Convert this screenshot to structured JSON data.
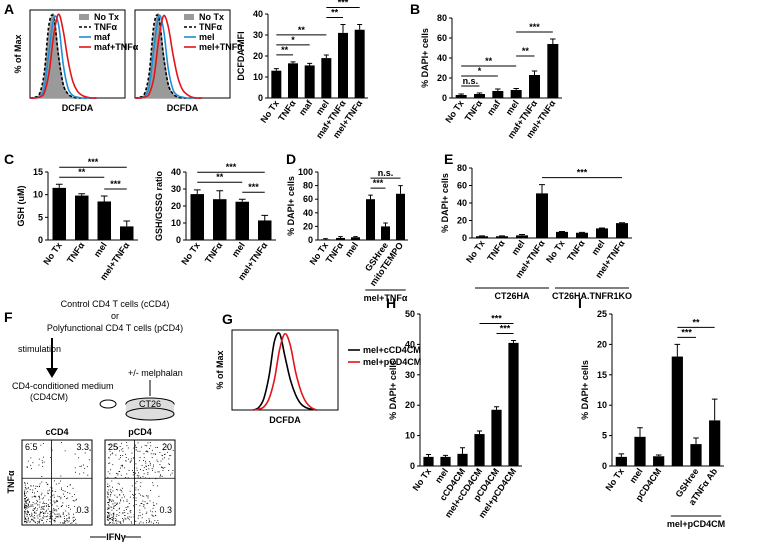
{
  "chart_data": [
    {
      "type": "line",
      "panel": "A",
      "ylabel": "% of Max",
      "xlabel": "DCFDA",
      "x": [
        0,
        5,
        10,
        15,
        20,
        25,
        30,
        35,
        40,
        45,
        50,
        55,
        60,
        65,
        70
      ],
      "xlim": [
        0,
        100
      ],
      "ylim": [
        0,
        105
      ],
      "legend": "upper right",
      "series": [
        {
          "name": "No Tx",
          "color": "#9a9a9a",
          "fill": true,
          "values": [
            0,
            1,
            4,
            25,
            80,
            100,
            55,
            18,
            5,
            1,
            0,
            0,
            0,
            0,
            0
          ]
        },
        {
          "name": "TNFα",
          "color": "#000000",
          "dash": true,
          "values": [
            0,
            1,
            5,
            30,
            88,
            96,
            50,
            16,
            5,
            1,
            0,
            0,
            0,
            0,
            0
          ]
        },
        {
          "name": "maf",
          "color": "#1f8fd6",
          "values": [
            0,
            0,
            2,
            12,
            55,
            95,
            88,
            40,
            12,
            3,
            1,
            0,
            0,
            0,
            0
          ]
        },
        {
          "name": "maf+TNFα",
          "color": "#e3151a",
          "values": [
            0,
            0,
            1,
            6,
            30,
            75,
            100,
            80,
            45,
            20,
            8,
            3,
            1,
            0,
            0
          ]
        }
      ]
    },
    {
      "type": "line",
      "xlabel": "DCFDA",
      "x": [
        0,
        5,
        10,
        15,
        20,
        25,
        30,
        35,
        40,
        45,
        50,
        55,
        60,
        65,
        70
      ],
      "xlim": [
        0,
        100
      ],
      "ylim": [
        0,
        105
      ],
      "legend": "upper right",
      "series": [
        {
          "name": "No Tx",
          "color": "#9a9a9a",
          "fill": true,
          "values": [
            0,
            1,
            4,
            25,
            80,
            100,
            55,
            18,
            5,
            1,
            0,
            0,
            0,
            0,
            0
          ]
        },
        {
          "name": "TNFα",
          "color": "#000000",
          "dash": true,
          "values": [
            0,
            1,
            5,
            30,
            88,
            96,
            50,
            16,
            5,
            1,
            0,
            0,
            0,
            0,
            0
          ]
        },
        {
          "name": "mel",
          "color": "#1f8fd6",
          "values": [
            0,
            0,
            2,
            14,
            60,
            98,
            82,
            35,
            10,
            3,
            1,
            0,
            0,
            0,
            0
          ]
        },
        {
          "name": "mel+TNFα",
          "color": "#e3151a",
          "values": [
            0,
            0,
            1,
            5,
            25,
            70,
            98,
            85,
            52,
            25,
            10,
            4,
            1,
            0,
            0
          ]
        }
      ]
    },
    {
      "type": "bar",
      "ylabel": "DCFDA MFI",
      "color": "#000000",
      "categories": [
        "No Tx",
        "TNFα",
        "maf",
        "mel",
        "maf+TNFα",
        "mel+TNFα"
      ],
      "values": [
        13,
        16.5,
        15.5,
        19,
        31,
        32.5
      ],
      "errors": [
        1,
        0.7,
        1,
        1.5,
        4,
        2.5
      ],
      "ylim": [
        0,
        40
      ],
      "yticks": [
        0,
        10,
        20,
        30,
        40
      ],
      "brackets": [
        {
          "label": "**",
          "from": 0,
          "to": 1
        },
        {
          "label": "*",
          "from": 0,
          "to": 2
        },
        {
          "label": "**",
          "from": 0,
          "to": 3
        },
        {
          "label": "**",
          "from": 3,
          "to": 4
        },
        {
          "label": "***",
          "from": 3,
          "to": 5
        }
      ]
    },
    {
      "type": "bar",
      "panel": "B",
      "ylabel": "% DAPI+ cells",
      "color": "#000000",
      "categories": [
        "No Tx",
        "TNFα",
        "maf",
        "mel",
        "maf+TNFα",
        "mel+TNFα"
      ],
      "values": [
        3,
        4,
        7,
        8,
        23,
        54
      ],
      "errors": [
        1,
        1,
        2,
        1.5,
        4,
        5
      ],
      "ylim": [
        0,
        80
      ],
      "yticks": [
        0,
        20,
        40,
        60,
        80
      ],
      "brackets": [
        {
          "label": "n.s.",
          "from": 0,
          "to": 1
        },
        {
          "label": "*",
          "from": 0,
          "to": 2
        },
        {
          "label": "**",
          "from": 0,
          "to": 3
        },
        {
          "label": "**",
          "from": 3,
          "to": 4
        },
        {
          "label": "***",
          "from": 3,
          "to": 5
        }
      ]
    },
    {
      "type": "bar",
      "panel": "C",
      "ylabel": "GSH (uM)",
      "color": "#000000",
      "categories": [
        "No Tx",
        "TNFα",
        "mel",
        "mel+TNFα"
      ],
      "values": [
        11.5,
        9.8,
        8.5,
        3
      ],
      "errors": [
        0.8,
        0.4,
        1.2,
        1.2
      ],
      "ylim": [
        0,
        15
      ],
      "yticks": [
        0,
        5,
        10,
        15
      ],
      "brackets": [
        {
          "label": "***",
          "from": 2,
          "to": 3
        },
        {
          "label": "**",
          "from": 0,
          "to": 2
        },
        {
          "label": "***",
          "from": 0,
          "to": 3
        }
      ]
    },
    {
      "type": "bar",
      "ylabel": "GSH/GSSG ratio",
      "color": "#000000",
      "categories": [
        "No Tx",
        "TNFα",
        "mel",
        "mel+TNFα"
      ],
      "values": [
        27,
        24,
        22.5,
        11.5
      ],
      "errors": [
        2.5,
        5,
        1.5,
        3
      ],
      "ylim": [
        0,
        40
      ],
      "yticks": [
        0,
        10,
        20,
        30,
        40
      ],
      "brackets": [
        {
          "label": "***",
          "from": 2,
          "to": 3
        },
        {
          "label": "**",
          "from": 0,
          "to": 2
        },
        {
          "label": "***",
          "from": 0,
          "to": 3
        }
      ]
    },
    {
      "type": "bar",
      "panel": "D",
      "ylabel": "% DAPI+ cells",
      "color": "#000000",
      "categories": [
        "No Tx",
        "TNFα",
        "mel",
        null,
        "GSHree",
        "mitoTEMPO"
      ],
      "values": [
        1,
        3,
        4,
        60,
        20,
        68
      ],
      "errors": [
        1,
        2,
        1,
        6,
        5,
        12
      ],
      "ylim": [
        0,
        100
      ],
      "yticks": [
        0,
        20,
        40,
        60,
        80,
        100
      ],
      "brackets": [
        {
          "label": "***",
          "from": 3,
          "to": 4
        },
        {
          "label": "n.s.",
          "from": 3,
          "to": 5
        }
      ],
      "groups": [
        {
          "label": "mel+TNFα",
          "from": 3,
          "to": 5
        }
      ]
    },
    {
      "type": "bar",
      "panel": "E",
      "ylabel": "% DAPI+ cells",
      "color": "#000000",
      "categories": [
        "No Tx",
        "TNFα",
        "mel",
        "mel+TNFα",
        "No Tx",
        "TNFα",
        "mel",
        "mel+TNFα"
      ],
      "values": [
        2,
        2,
        3,
        51,
        7,
        6,
        11,
        17
      ],
      "errors": [
        0.5,
        0.5,
        1,
        10,
        0.5,
        0.5,
        0.5,
        0.5
      ],
      "ylim": [
        0,
        80
      ],
      "yticks": [
        0,
        20,
        40,
        60,
        80
      ],
      "brackets": [
        {
          "label": "***",
          "from": 3,
          "to": 7
        }
      ],
      "groups": [
        {
          "label": "CT26HA",
          "from": 0,
          "to": 3
        },
        {
          "label": "CT26HA.TNFR1KO",
          "from": 4,
          "to": 7
        }
      ]
    },
    {
      "type": "line",
      "panel": "G",
      "ylabel": "% of Max",
      "xlabel": "DCFDA",
      "x": [
        20,
        25,
        30,
        35,
        40,
        45,
        50,
        55,
        60,
        65,
        70,
        75,
        80
      ],
      "xlim": [
        0,
        100
      ],
      "ylim": [
        0,
        105
      ],
      "legend": "right",
      "series": [
        {
          "name": "mel+cCD4CM",
          "color": "#000000",
          "values": [
            0,
            3,
            15,
            45,
            90,
            100,
            70,
            40,
            20,
            8,
            3,
            1,
            0
          ]
        },
        {
          "name": "mel+pCD4CM",
          "color": "#e3151a",
          "values": [
            0,
            1,
            4,
            15,
            40,
            80,
            100,
            85,
            50,
            25,
            10,
            3,
            0
          ]
        }
      ]
    },
    {
      "type": "bar",
      "panel": "H",
      "ylabel": "% DAPI+ cells",
      "color": "#000000",
      "categories": [
        "No Tx",
        "mel",
        "cCD4CM",
        "mel+cCD4CM",
        "pCD4CM",
        "mel+pCD4CM"
      ],
      "values": [
        3,
        3,
        4,
        10.5,
        18.5,
        40.5
      ],
      "errors": [
        0.8,
        0.5,
        2,
        1,
        1,
        0.8
      ],
      "ylim": [
        0,
        50
      ],
      "yticks": [
        0,
        10,
        20,
        30,
        40,
        50
      ],
      "brackets": [
        {
          "label": "***",
          "from": 4,
          "to": 5
        },
        {
          "label": "***",
          "from": 3,
          "to": 5
        }
      ]
    },
    {
      "type": "bar",
      "panel": "I",
      "ylabel": "% DAPI+ cells",
      "color": "#000000",
      "categories": [
        "No Tx",
        "mel",
        "pCD4CM",
        null,
        "GSHree",
        "aTNFα Ab"
      ],
      "values": [
        1.5,
        4.8,
        1.6,
        18,
        3.6,
        7.5
      ],
      "errors": [
        0.5,
        1.5,
        0.2,
        2,
        1,
        3.5
      ],
      "ylim": [
        0,
        25
      ],
      "yticks": [
        0,
        5,
        10,
        15,
        20,
        25
      ],
      "brackets": [
        {
          "label": "***",
          "from": 3,
          "to": 4
        },
        {
          "label": "**",
          "from": 3,
          "to": 5
        }
      ],
      "groups": [
        {
          "label": "mel+pCD4CM",
          "from": 3,
          "to": 5
        }
      ]
    }
  ],
  "panel_f": {
    "panel": "F",
    "sources": [
      "Control CD4 T cells (cCD4)",
      "or",
      "Polyfunctional CD4 T cells (pCD4)"
    ],
    "stimulation": "stimulation",
    "medium": [
      "CD4-conditioned medium",
      "(CD4CM)"
    ],
    "treatment": "+/- melphalan",
    "cell_line": "CT26",
    "plots": [
      {
        "title": "cCD4",
        "quadrants": [
          6.5,
          3.3,
          0.3
        ]
      },
      {
        "title": "pCD4",
        "quadrants": [
          25,
          20,
          0.3
        ]
      }
    ],
    "ylabel": "TNFα",
    "xlabel": "IFNγ"
  }
}
